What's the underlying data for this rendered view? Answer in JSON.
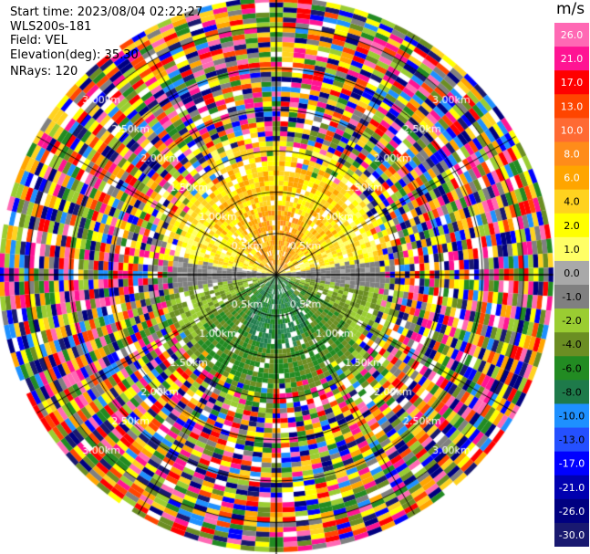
{
  "header": {
    "start_time": "Start time: 2023/08/04 02:22:27",
    "instrument": "WLS200s-181",
    "field": "Field: VEL",
    "elevation": "Elevation(deg): 35.30",
    "nrays": "NRays: 120"
  },
  "chart_data": {
    "type": "ppi",
    "field": "VEL",
    "units": "m/s",
    "elevation_deg": 35.3,
    "n_rays": 120,
    "range_rings_km": [
      0.5,
      1.0,
      1.5,
      2.0,
      2.5,
      3.0
    ],
    "range_labels": [
      "0.5km",
      "1.00km",
      "1.50km",
      "2.00km",
      "2.50km",
      "3.00km"
    ],
    "azimuth_spokes_deg": [
      0,
      30,
      60,
      90,
      120,
      150,
      180,
      210,
      240,
      270,
      300,
      330
    ],
    "max_range_km": 3.35,
    "regions": [
      {
        "sector": "north",
        "range_km": [
          0,
          1.6
        ],
        "velocity_ms": [
          2.0,
          8.0
        ],
        "description": "positive velocities (yellow/orange)"
      },
      {
        "sector": "east-west",
        "range_km": [
          0,
          1.4
        ],
        "velocity_ms": [
          -1.0,
          1.0
        ],
        "description": "near-zero (gray)"
      },
      {
        "sector": "south",
        "range_km": [
          0,
          1.4
        ],
        "velocity_ms": [
          -8.0,
          -2.0
        ],
        "description": "negative velocities (green/teal)"
      },
      {
        "sector": "all",
        "range_km": [
          1.6,
          3.35
        ],
        "velocity_ms": [
          -30.0,
          26.0
        ],
        "description": "noisy outer gates"
      }
    ],
    "colorbar": {
      "title": "m/s",
      "ticks": [
        "26.0",
        "21.0",
        "17.0",
        "13.0",
        "10.0",
        "8.0",
        "6.0",
        "4.0",
        "2.0",
        "1.0",
        "0.0",
        "-1.0",
        "-2.0",
        "-4.0",
        "-6.0",
        "-8.0",
        "-10.0",
        "-13.0",
        "-17.0",
        "-21.0",
        "-26.0",
        "-30.0"
      ],
      "colors": [
        "#ff69b4",
        "#ff1493",
        "#ff0000",
        "#ff4500",
        "#ff6a33",
        "#ff8c1a",
        "#ffa500",
        "#ffd21f",
        "#ffff00",
        "#ffff66",
        "#a9a9a9",
        "#808080",
        "#9acd32",
        "#6b8e23",
        "#228b22",
        "#1e7a4a",
        "#1e90ff",
        "#2450ff",
        "#0000ff",
        "#0000b0",
        "#000080",
        "#191970"
      ]
    }
  }
}
